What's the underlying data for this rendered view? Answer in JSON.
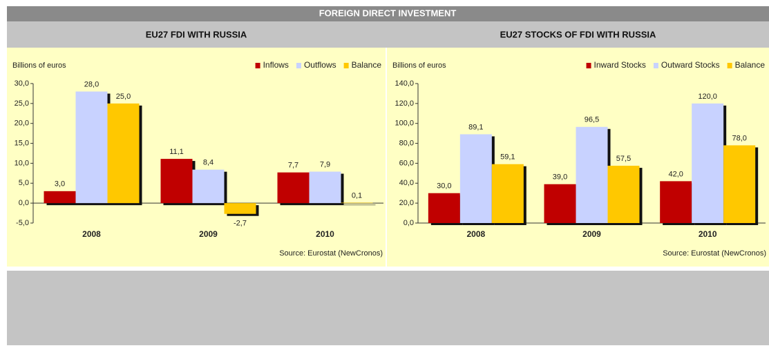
{
  "header": {
    "title": "FOREIGN DIRECT INVESTMENT"
  },
  "chart_data": [
    {
      "type": "bar",
      "title": "EU27 FDI WITH RUSSIA",
      "y_label": "Billions of euros",
      "source": "Source: Eurostat (NewCronos)",
      "categories": [
        "2008",
        "2009",
        "2010"
      ],
      "series": [
        {
          "name": "Inflows",
          "color": "#c00000",
          "values": [
            3.0,
            11.1,
            7.7
          ],
          "value_labels": [
            "3,0",
            "11,1",
            "7,7"
          ]
        },
        {
          "name": "Outflows",
          "color": "#c8d2ff",
          "values": [
            28.0,
            8.4,
            7.9
          ],
          "value_labels": [
            "28,0",
            "8,4",
            "7,9"
          ]
        },
        {
          "name": "Balance",
          "color": "#ffc800",
          "values": [
            25.0,
            -2.7,
            0.1
          ],
          "value_labels": [
            "25,0",
            "-2,7",
            "0,1"
          ]
        }
      ],
      "ylim": [
        -5,
        30
      ],
      "yticks": [
        {
          "value": -5,
          "label": "-5,0"
        },
        {
          "value": 0,
          "label": "0,0"
        },
        {
          "value": 5,
          "label": "5,0"
        },
        {
          "value": 10,
          "label": "10,0"
        },
        {
          "value": 15,
          "label": "15,0"
        },
        {
          "value": 20,
          "label": "20,0"
        },
        {
          "value": 25,
          "label": "25,0"
        },
        {
          "value": 30,
          "label": "30,0"
        }
      ],
      "legend": "top-right"
    },
    {
      "type": "bar",
      "title": "EU27 STOCKS OF FDI WITH RUSSIA",
      "y_label": "Billions of euros",
      "source": "Source: Eurostat (NewCronos)",
      "categories": [
        "2008",
        "2009",
        "2010"
      ],
      "series": [
        {
          "name": "Inward Stocks",
          "color": "#c00000",
          "values": [
            30.0,
            39.0,
            42.0
          ],
          "value_labels": [
            "30,0",
            "39,0",
            "42,0"
          ]
        },
        {
          "name": "Outward Stocks",
          "color": "#c8d2ff",
          "values": [
            89.1,
            96.5,
            120.0
          ],
          "value_labels": [
            "89,1",
            "96,5",
            "120,0"
          ]
        },
        {
          "name": "Balance",
          "color": "#ffc800",
          "values": [
            59.1,
            57.5,
            78.0
          ],
          "value_labels": [
            "59,1",
            "57,5",
            "78,0"
          ]
        }
      ],
      "ylim": [
        0,
        140
      ],
      "yticks": [
        {
          "value": 0,
          "label": "0,0"
        },
        {
          "value": 20,
          "label": "20,0"
        },
        {
          "value": 40,
          "label": "40,0"
        },
        {
          "value": 60,
          "label": "60,0"
        },
        {
          "value": 80,
          "label": "80,0"
        },
        {
          "value": 100,
          "label": "100,0"
        },
        {
          "value": 120,
          "label": "120,0"
        },
        {
          "value": 140,
          "label": "140,0"
        }
      ],
      "legend": "top-right"
    }
  ]
}
